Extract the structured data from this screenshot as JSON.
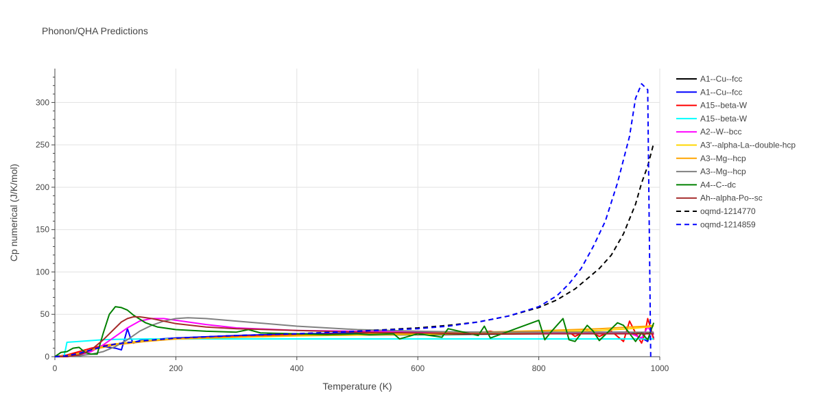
{
  "chart_data": {
    "type": "line",
    "title": "Phonon/QHA Predictions",
    "xlabel": "Temperature (K)",
    "ylabel": "Cp numerical (J/K/mol)",
    "xlim": [
      0,
      1000
    ],
    "ylim": [
      0,
      340
    ],
    "xticks": [
      0,
      200,
      400,
      600,
      800,
      1000
    ],
    "yticks": [
      0,
      50,
      100,
      150,
      200,
      250,
      300
    ],
    "grid": true,
    "legend_position": "right",
    "series": [
      {
        "name": "A1--Cu--fcc",
        "color": "#000000",
        "dash": false,
        "x": [
          0,
          20,
          40,
          60,
          80,
          100,
          150,
          200,
          250,
          300,
          400,
          500,
          600,
          700,
          800,
          900,
          950,
          980,
          990
        ],
        "y": [
          0,
          1,
          4,
          8,
          12,
          15,
          19,
          21.5,
          23,
          24,
          25,
          25.5,
          26,
          26.5,
          27,
          27.5,
          28,
          28,
          28
        ]
      },
      {
        "name": "A1--Cu--fcc",
        "color": "#0000ff",
        "dash": false,
        "x": [
          0,
          20,
          40,
          60,
          80,
          100,
          110,
          115,
          120,
          125,
          130,
          140,
          150,
          200,
          300,
          400,
          500,
          600,
          700,
          800,
          900,
          950,
          970,
          980,
          985,
          990
        ],
        "y": [
          0,
          1,
          4,
          8,
          12,
          10,
          8,
          20,
          33,
          22,
          16,
          19,
          20,
          22,
          25,
          27,
          28,
          29,
          29,
          29,
          29,
          29,
          22,
          18,
          30,
          22
        ]
      },
      {
        "name": "A15--beta-W",
        "color": "#ff0000",
        "dash": false,
        "x": [
          0,
          20,
          40,
          60,
          80,
          100,
          150,
          200,
          300,
          400,
          500,
          600,
          700,
          720,
          740,
          800,
          850,
          860,
          880,
          900,
          920,
          940,
          950,
          960,
          970,
          975,
          980,
          985,
          990
        ],
        "y": [
          0,
          2,
          6,
          10,
          13,
          15,
          19,
          21,
          24,
          26,
          27,
          27.5,
          28,
          30,
          27,
          27,
          29,
          24,
          31,
          24,
          30,
          18,
          42,
          28,
          16,
          26,
          45,
          34,
          20
        ]
      },
      {
        "name": "A15--beta-W",
        "color": "#00ffff",
        "dash": false,
        "x": [
          0,
          15,
          18,
          20,
          40,
          60,
          80,
          100,
          150,
          200,
          300,
          400,
          500,
          600,
          700,
          800,
          900,
          980,
          990
        ],
        "y": [
          0,
          0,
          10,
          17,
          18,
          19,
          20,
          20.5,
          21,
          21,
          21,
          21,
          21,
          21,
          21,
          21,
          21,
          21,
          21
        ]
      },
      {
        "name": "A2--W--bcc",
        "color": "#ff00ff",
        "dash": false,
        "x": [
          0,
          20,
          40,
          60,
          80,
          100,
          120,
          140,
          160,
          180,
          200,
          250,
          300,
          400,
          500,
          600,
          700,
          800,
          900,
          950,
          970,
          980,
          990
        ],
        "y": [
          0,
          0,
          2,
          6,
          14,
          24,
          34,
          42,
          45,
          45,
          43,
          38,
          34,
          31,
          30,
          29,
          28,
          28,
          28,
          28,
          22,
          35,
          26
        ]
      },
      {
        "name": "A3'--alpha-La--double-hcp",
        "color": "#ffd700",
        "dash": false,
        "x": [
          0,
          20,
          40,
          60,
          80,
          100,
          150,
          200,
          300,
          400,
          500,
          600,
          700,
          800,
          900,
          950,
          980,
          990
        ],
        "y": [
          0,
          1,
          4,
          8,
          12,
          15,
          19,
          21,
          23,
          24.5,
          25.5,
          26.5,
          27.5,
          29,
          31,
          33,
          35,
          36
        ]
      },
      {
        "name": "A3--Mg--hcp",
        "color": "#ffa500",
        "dash": false,
        "x": [
          0,
          20,
          40,
          60,
          80,
          100,
          150,
          200,
          300,
          400,
          500,
          600,
          700,
          800,
          900,
          950,
          980,
          990
        ],
        "y": [
          0,
          1,
          4,
          8,
          11,
          14,
          18,
          21,
          23,
          25,
          26.5,
          27.5,
          29,
          30.5,
          33,
          35,
          36,
          37
        ]
      },
      {
        "name": "A3--Mg--hcp",
        "color": "#808080",
        "dash": false,
        "x": [
          0,
          40,
          60,
          80,
          100,
          120,
          140,
          160,
          180,
          200,
          220,
          250,
          300,
          400,
          500,
          600,
          700,
          800,
          900,
          950,
          980,
          990
        ],
        "y": [
          0,
          1,
          3,
          6,
          12,
          20,
          30,
          37,
          42,
          45,
          46,
          45,
          42,
          36,
          32,
          30,
          29,
          29,
          29,
          29,
          29,
          29
        ]
      },
      {
        "name": "A4--C--dc",
        "color": "#008000",
        "dash": false,
        "x": [
          0,
          10,
          20,
          30,
          40,
          50,
          60,
          70,
          80,
          90,
          100,
          110,
          120,
          130,
          150,
          170,
          200,
          250,
          300,
          320,
          340,
          400,
          450,
          500,
          520,
          560,
          570,
          600,
          640,
          650,
          700,
          710,
          720,
          800,
          810,
          820,
          840,
          850,
          860,
          880,
          890,
          900,
          930,
          940,
          960,
          970,
          980,
          990
        ],
        "y": [
          0,
          5,
          6,
          10,
          11,
          5,
          3,
          3,
          28,
          50,
          59,
          58,
          55,
          49,
          40,
          35,
          32,
          30,
          29,
          32,
          28,
          27,
          26,
          27,
          26,
          27,
          21,
          27,
          23,
          33,
          25,
          36,
          22,
          43,
          20,
          29,
          45,
          20,
          18,
          37,
          30,
          19,
          40,
          37,
          18,
          28,
          20,
          40
        ]
      },
      {
        "name": "Ah--alpha-Po--sc",
        "color": "#a52a2a",
        "dash": false,
        "x": [
          0,
          20,
          40,
          60,
          80,
          100,
          110,
          120,
          130,
          140,
          160,
          180,
          200,
          250,
          300,
          400,
          500,
          600,
          700,
          800,
          900,
          950,
          980,
          990
        ],
        "y": [
          0,
          0,
          2,
          8,
          20,
          34,
          41,
          45,
          47,
          47,
          45,
          42,
          39,
          35,
          33,
          31,
          29,
          28,
          27,
          27,
          27,
          27,
          27,
          27
        ]
      },
      {
        "name": "oqmd-1214770",
        "color": "#000000",
        "dash": true,
        "x": [
          0,
          20,
          40,
          60,
          80,
          100,
          150,
          200,
          300,
          400,
          500,
          600,
          650,
          700,
          750,
          800,
          830,
          860,
          880,
          900,
          920,
          940,
          960,
          970,
          980,
          990
        ],
        "y": [
          0,
          1,
          4,
          8,
          12,
          15,
          19,
          22,
          25,
          27,
          30,
          34,
          37,
          41,
          48,
          58,
          67,
          80,
          92,
          104,
          120,
          145,
          180,
          205,
          225,
          252
        ]
      },
      {
        "name": "oqmd-1214859",
        "color": "#0000ff",
        "dash": true,
        "x": [
          0,
          20,
          40,
          60,
          80,
          100,
          150,
          200,
          300,
          400,
          500,
          600,
          650,
          700,
          750,
          800,
          830,
          850,
          870,
          890,
          910,
          930,
          950,
          960,
          970,
          980,
          985
        ],
        "y": [
          0,
          1,
          4,
          8,
          12,
          15,
          19,
          22,
          25,
          27,
          30,
          33,
          36,
          41,
          48,
          59,
          72,
          86,
          104,
          130,
          160,
          205,
          260,
          305,
          322,
          315,
          0
        ]
      }
    ]
  }
}
